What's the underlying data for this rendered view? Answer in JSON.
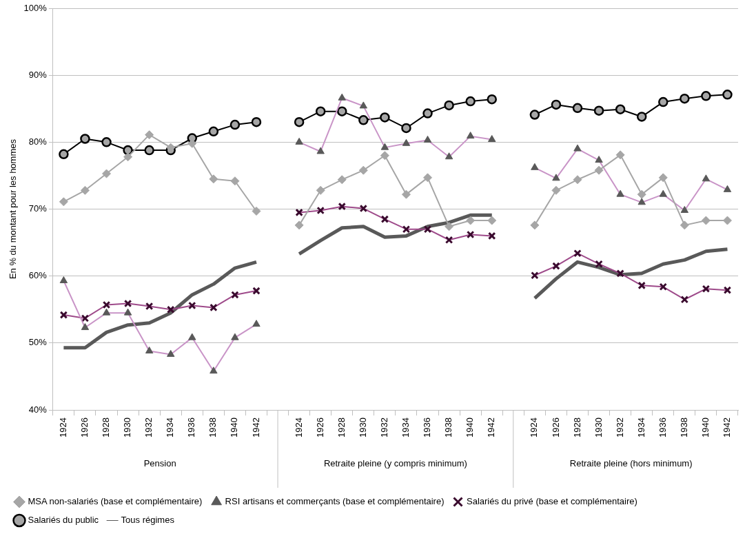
{
  "chart_data": {
    "type": "line",
    "ylabel": "En % du montant pour les hommes",
    "categories": [
      "1924",
      "1926",
      "1928",
      "1930",
      "1932",
      "1934",
      "1936",
      "1938",
      "1940",
      "1942",
      null,
      "1924",
      "1926",
      "1928",
      "1930",
      "1932",
      "1934",
      "1936",
      "1938",
      "1940",
      "1942",
      null,
      "1924",
      "1926",
      "1928",
      "1930",
      "1932",
      "1934",
      "1936",
      "1938",
      "1940",
      "1942"
    ],
    "annotations": [
      "Pension",
      "Retraite pleine (y compris minimum)",
      "Retraite pleine (hors minimum)"
    ],
    "ylim": [
      40,
      100
    ],
    "yticks": [
      {
        "value": 40,
        "label": "40%"
      },
      {
        "value": 50,
        "label": "50%"
      },
      {
        "value": 60,
        "label": "60%"
      },
      {
        "value": 70,
        "label": "70%"
      },
      {
        "value": 80,
        "label": "80%"
      },
      {
        "value": 90,
        "label": "90%"
      },
      {
        "value": 100,
        "label": "100%"
      }
    ],
    "grid": "y",
    "legend": "bottom left",
    "series": [
      {
        "name": "MSA non-salariés (base et complémentaire)",
        "color": "#a6a6a6",
        "marker": "diamond",
        "values": [
          71.1,
          72.8,
          75.3,
          77.8,
          81.1,
          79.2,
          79.8,
          74.5,
          74.2,
          69.7,
          null,
          67.6,
          72.8,
          74.4,
          75.8,
          78.0,
          72.2,
          74.7,
          67.4,
          68.3,
          68.3,
          null,
          67.6,
          72.8,
          74.4,
          75.8,
          78.1,
          72.2,
          74.7,
          67.6,
          68.3,
          68.3
        ]
      },
      {
        "name": "RSI artisans et commerçants (base et complémentaire)",
        "color": "#c994c7",
        "marker": "triangle",
        "values": [
          59.3,
          52.3,
          54.5,
          54.5,
          48.8,
          48.3,
          50.8,
          45.8,
          50.8,
          52.8,
          null,
          80.0,
          78.6,
          86.6,
          85.4,
          79.2,
          79.8,
          80.3,
          77.8,
          80.9,
          80.4,
          null,
          76.2,
          74.6,
          79.0,
          77.3,
          72.2,
          71.0,
          72.2,
          69.8,
          74.5,
          72.9
        ]
      },
      {
        "name": "Salariés du privé (base et complémentaire)",
        "color": "#9e4a8a",
        "marker": "cross",
        "values": [
          54.2,
          53.7,
          55.7,
          55.9,
          55.5,
          55.0,
          55.6,
          55.3,
          57.2,
          57.8,
          null,
          69.5,
          69.8,
          70.4,
          70.1,
          68.5,
          67.0,
          67.0,
          65.4,
          66.2,
          66.0,
          null,
          60.1,
          61.5,
          63.4,
          61.8,
          60.4,
          58.6,
          58.4,
          56.5,
          58.1,
          57.9
        ]
      },
      {
        "name": "Salariés du public",
        "color": "#000000",
        "marker": "circle",
        "values": [
          78.2,
          80.5,
          80.0,
          78.8,
          78.8,
          78.8,
          80.6,
          81.6,
          82.6,
          83.0,
          null,
          83.0,
          84.6,
          84.6,
          83.3,
          83.7,
          82.1,
          84.3,
          85.5,
          86.1,
          86.4,
          null,
          84.1,
          85.6,
          85.1,
          84.7,
          84.9,
          83.8,
          86.0,
          86.5,
          86.9,
          87.1
        ]
      },
      {
        "name": "Tous régimes",
        "color": "#595959",
        "marker": "none",
        "values": [
          49.3,
          49.3,
          51.6,
          52.7,
          53.0,
          54.5,
          57.2,
          58.8,
          61.2,
          62.1,
          null,
          63.3,
          65.3,
          67.2,
          67.4,
          65.8,
          66.0,
          67.4,
          68.0,
          69.1,
          69.1,
          null,
          56.7,
          59.6,
          62.1,
          61.3,
          60.2,
          60.4,
          61.8,
          62.4,
          63.7,
          64.0
        ]
      }
    ]
  }
}
